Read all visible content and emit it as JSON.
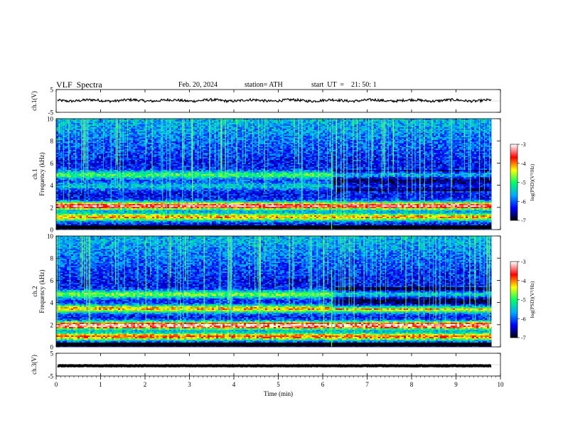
{
  "header": {
    "title": "VLF  Spectra",
    "date": "Feb. 20, 2024",
    "station": "station= ATH",
    "start": "start  UT  =    21: 50: 1"
  },
  "chart_data": [
    {
      "type": "line",
      "name": "ch1-waveform",
      "ylabel": "ch.1(V)",
      "ylim": [
        -5,
        5
      ],
      "yticks": [
        "5",
        "-5"
      ],
      "x_range_min": [
        0,
        9.8
      ],
      "level": 0.2,
      "noise_amplitude": 0.55
    },
    {
      "type": "heatmap",
      "name": "ch1-spectrogram",
      "ylabel": "ch.1\nFrequency  (kHz)",
      "ylim": [
        0,
        10
      ],
      "yticks": [
        "0",
        "2",
        "4",
        "6",
        "8",
        "10"
      ],
      "x_range_min": [
        0,
        9.8
      ],
      "bands": [
        {
          "f": 1.2,
          "level": 0.55
        },
        {
          "f": 2.2,
          "level": 0.75
        },
        {
          "f": 4.0,
          "level": 0.2
        },
        {
          "f": 5.0,
          "level": 0.35
        }
      ],
      "change_at_min": 6.2
    },
    {
      "type": "heatmap",
      "name": "ch2-spectrogram",
      "ylabel": "ch.2\nFrequency  (kHz)",
      "ylim": [
        0,
        10
      ],
      "yticks": [
        "0",
        "2",
        "4",
        "6",
        "8",
        "10"
      ],
      "x_range_min": [
        0,
        9.8
      ],
      "bands": [
        {
          "f": 1.0,
          "level": 0.6
        },
        {
          "f": 2.0,
          "level": 0.8
        },
        {
          "f": 3.5,
          "level": 0.55
        },
        {
          "f": 4.8,
          "level": 0.4
        }
      ],
      "change_at_min": 6.2
    },
    {
      "type": "line",
      "name": "ch3-waveform",
      "ylabel": "ch.3(V)",
      "ylim": [
        -5,
        5
      ],
      "yticks": [
        "5",
        "-5"
      ],
      "x_range_min": [
        0,
        9.8
      ],
      "level": -0.5,
      "noise_amplitude": 0.1
    }
  ],
  "x_axis": {
    "xlabel": "Time  (min)",
    "xlim": [
      0,
      10
    ],
    "ticks": [
      "0",
      "1",
      "2",
      "3",
      "4",
      "5",
      "6",
      "7",
      "8",
      "9",
      "10"
    ]
  },
  "colorbar": {
    "label": "log(PSD)(V²/Hz)",
    "range": [
      -7,
      -3
    ],
    "ticks": [
      "-3",
      "-4",
      "-5",
      "-6",
      "-7"
    ],
    "colors": [
      "#000000",
      "#0000ff",
      "#00aaff",
      "#00ff66",
      "#ffff00",
      "#ff0000",
      "#ffffff"
    ]
  }
}
